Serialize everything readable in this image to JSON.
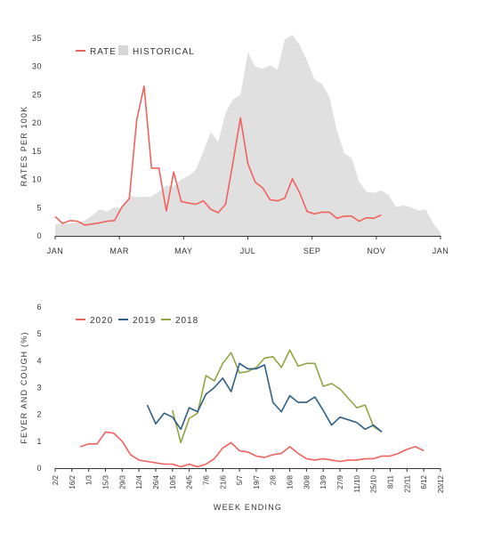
{
  "chart_data": [
    {
      "type": "line",
      "title": "",
      "xlabel": "",
      "ylabel": "RATES PER 100K",
      "ylim": [
        0,
        35
      ],
      "yticks": [
        0,
        5,
        10,
        15,
        20,
        25,
        30,
        35
      ],
      "xtick_labels": [
        "JAN",
        "MAR",
        "MAY",
        "JUL",
        "SEP",
        "NOV",
        "JAN"
      ],
      "x_unit": "week of year",
      "legend": {
        "placement": "top-left",
        "items": [
          "RATE",
          "HISTORICAL"
        ]
      },
      "series": [
        {
          "name": "RATE",
          "kind": "line",
          "color": "#f0625d",
          "points": [
            [
              0,
              3.4
            ],
            [
              1,
              2.2
            ],
            [
              2,
              2.7
            ],
            [
              3,
              2.6
            ],
            [
              4,
              1.9
            ],
            [
              5,
              2.1
            ],
            [
              6,
              2.3
            ],
            [
              7,
              2.6
            ],
            [
              8,
              2.7
            ],
            [
              9,
              5.1
            ],
            [
              10,
              6.6
            ],
            [
              11,
              20.5
            ],
            [
              12,
              26.5
            ],
            [
              13,
              12.0
            ],
            [
              14,
              12.0
            ],
            [
              15,
              4.4
            ],
            [
              16,
              11.3
            ],
            [
              17,
              6.1
            ],
            [
              18,
              5.8
            ],
            [
              19,
              5.6
            ],
            [
              20,
              6.2
            ],
            [
              21,
              4.7
            ],
            [
              22,
              4.1
            ],
            [
              23,
              5.6
            ],
            [
              24,
              13.0
            ],
            [
              25,
              20.9
            ],
            [
              26,
              12.8
            ],
            [
              27,
              9.5
            ],
            [
              28,
              8.5
            ],
            [
              29,
              6.4
            ],
            [
              30,
              6.2
            ],
            [
              31,
              6.7
            ],
            [
              32,
              10.1
            ],
            [
              33,
              7.6
            ],
            [
              34,
              4.3
            ],
            [
              35,
              3.9
            ],
            [
              36,
              4.2
            ],
            [
              37,
              4.2
            ],
            [
              38,
              3.1
            ],
            [
              39,
              3.5
            ],
            [
              40,
              3.5
            ],
            [
              41,
              2.6
            ],
            [
              42,
              3.2
            ],
            [
              43,
              3.1
            ],
            [
              44,
              3.7
            ]
          ]
        },
        {
          "name": "HISTORICAL",
          "kind": "area",
          "color": "#e0e0e0",
          "points": [
            [
              0,
              2.0
            ],
            [
              1,
              2.1
            ],
            [
              2,
              2.2
            ],
            [
              3,
              2.4
            ],
            [
              4,
              2.7
            ],
            [
              5,
              3.6
            ],
            [
              6,
              4.7
            ],
            [
              7,
              4.3
            ],
            [
              8,
              5.1
            ],
            [
              9,
              4.9
            ],
            [
              10,
              7.1
            ],
            [
              11,
              6.9
            ],
            [
              12,
              6.9
            ],
            [
              13,
              7.0
            ],
            [
              14,
              7.8
            ],
            [
              15,
              8.9
            ],
            [
              16,
              8.7
            ],
            [
              17,
              10.0
            ],
            [
              18,
              10.6
            ],
            [
              19,
              11.7
            ],
            [
              20,
              15.0
            ],
            [
              21,
              18.4
            ],
            [
              22,
              16.6
            ],
            [
              23,
              21.8
            ],
            [
              24,
              24.2
            ],
            [
              25,
              25.0
            ],
            [
              26,
              32.5
            ],
            [
              27,
              30.0
            ],
            [
              28,
              29.6
            ],
            [
              29,
              30.2
            ],
            [
              30,
              29.4
            ],
            [
              31,
              34.8
            ],
            [
              32,
              35.6
            ],
            [
              33,
              33.8
            ],
            [
              34,
              31.0
            ],
            [
              35,
              27.7
            ],
            [
              36,
              26.9
            ],
            [
              37,
              24.6
            ],
            [
              38,
              18.8
            ],
            [
              39,
              14.6
            ],
            [
              40,
              13.8
            ],
            [
              41,
              9.6
            ],
            [
              42,
              7.8
            ],
            [
              43,
              7.6
            ],
            [
              44,
              8.0
            ],
            [
              45,
              7.2
            ],
            [
              46,
              5.1
            ],
            [
              47,
              5.4
            ],
            [
              48,
              5.1
            ],
            [
              49,
              4.5
            ],
            [
              50,
              4.7
            ],
            [
              51,
              2.2
            ],
            [
              52,
              0.6
            ]
          ]
        }
      ]
    },
    {
      "type": "line",
      "title": "",
      "xlabel": "WEEK ENDING",
      "ylabel": "FEVER AND COUGH (%)",
      "ylim": [
        0,
        6
      ],
      "yticks": [
        0,
        1,
        2,
        3,
        4,
        5,
        6
      ],
      "x_unit": "week index (0 = week ending 2/2)",
      "xtick_labels": [
        "2/2",
        "16/2",
        "1/3",
        "15/3",
        "29/3",
        "12/4",
        "26/4",
        "10/5",
        "24/5",
        "7/6",
        "21/6",
        "5/7",
        "19/7",
        "2/8",
        "16/8",
        "30/8",
        "13/9",
        "27/9",
        "11/10",
        "25/10",
        "8/11",
        "22/11",
        "6/12",
        "20/12"
      ],
      "legend": {
        "placement": "top-left",
        "items": [
          "2020",
          "2019",
          "2018"
        ]
      },
      "series": [
        {
          "name": "2020",
          "color": "#f0625d",
          "points": [
            [
              3,
              0.8
            ],
            [
              4,
              0.9
            ],
            [
              5,
              0.9
            ],
            [
              6,
              1.35
            ],
            [
              7,
              1.3
            ],
            [
              8,
              1.0
            ],
            [
              9,
              0.5
            ],
            [
              10,
              0.3
            ],
            [
              11,
              0.25
            ],
            [
              12,
              0.2
            ],
            [
              13,
              0.15
            ],
            [
              14,
              0.15
            ],
            [
              15,
              0.05
            ],
            [
              16,
              0.15
            ],
            [
              17,
              0.05
            ],
            [
              18,
              0.15
            ],
            [
              19,
              0.35
            ],
            [
              20,
              0.75
            ],
            [
              21,
              0.95
            ],
            [
              22,
              0.65
            ],
            [
              23,
              0.6
            ],
            [
              24,
              0.45
            ],
            [
              25,
              0.4
            ],
            [
              26,
              0.5
            ],
            [
              27,
              0.55
            ],
            [
              28,
              0.8
            ],
            [
              29,
              0.55
            ],
            [
              30,
              0.35
            ],
            [
              31,
              0.3
            ],
            [
              32,
              0.35
            ],
            [
              33,
              0.3
            ],
            [
              34,
              0.25
            ],
            [
              35,
              0.3
            ],
            [
              36,
              0.3
            ],
            [
              37,
              0.35
            ],
            [
              38,
              0.35
            ],
            [
              39,
              0.45
            ],
            [
              40,
              0.45
            ],
            [
              41,
              0.55
            ],
            [
              42,
              0.7
            ],
            [
              43,
              0.8
            ],
            [
              44,
              0.65
            ]
          ]
        },
        {
          "name": "2019",
          "color": "#2f5f86",
          "points": [
            [
              11,
              2.35
            ],
            [
              12,
              1.65
            ],
            [
              13,
              2.05
            ],
            [
              14,
              1.9
            ],
            [
              15,
              1.45
            ],
            [
              16,
              2.25
            ],
            [
              17,
              2.1
            ],
            [
              18,
              2.75
            ],
            [
              19,
              3.0
            ],
            [
              20,
              3.35
            ],
            [
              21,
              2.85
            ],
            [
              22,
              3.9
            ],
            [
              23,
              3.7
            ],
            [
              24,
              3.7
            ],
            [
              25,
              3.85
            ],
            [
              26,
              2.45
            ],
            [
              27,
              2.1
            ],
            [
              28,
              2.7
            ],
            [
              29,
              2.45
            ],
            [
              30,
              2.45
            ],
            [
              31,
              2.65
            ],
            [
              32,
              2.15
            ],
            [
              33,
              1.6
            ],
            [
              34,
              1.9
            ],
            [
              35,
              1.8
            ],
            [
              36,
              1.7
            ],
            [
              37,
              1.45
            ],
            [
              38,
              1.6
            ],
            [
              39,
              1.35
            ]
          ]
        },
        {
          "name": "2018",
          "color": "#8ea645",
          "points": [
            [
              14,
              2.15
            ],
            [
              15,
              0.95
            ],
            [
              16,
              1.85
            ],
            [
              17,
              2.05
            ],
            [
              18,
              3.45
            ],
            [
              19,
              3.25
            ],
            [
              20,
              3.9
            ],
            [
              21,
              4.3
            ],
            [
              22,
              3.55
            ],
            [
              23,
              3.6
            ],
            [
              24,
              3.75
            ],
            [
              25,
              4.1
            ],
            [
              26,
              4.15
            ],
            [
              27,
              3.75
            ],
            [
              28,
              4.4
            ],
            [
              29,
              3.8
            ],
            [
              30,
              3.9
            ],
            [
              31,
              3.9
            ],
            [
              32,
              3.05
            ],
            [
              33,
              3.15
            ],
            [
              34,
              2.95
            ],
            [
              35,
              2.6
            ],
            [
              36,
              2.25
            ],
            [
              37,
              2.35
            ],
            [
              38,
              1.55
            ],
            [
              39,
              1.35
            ]
          ]
        }
      ]
    }
  ]
}
